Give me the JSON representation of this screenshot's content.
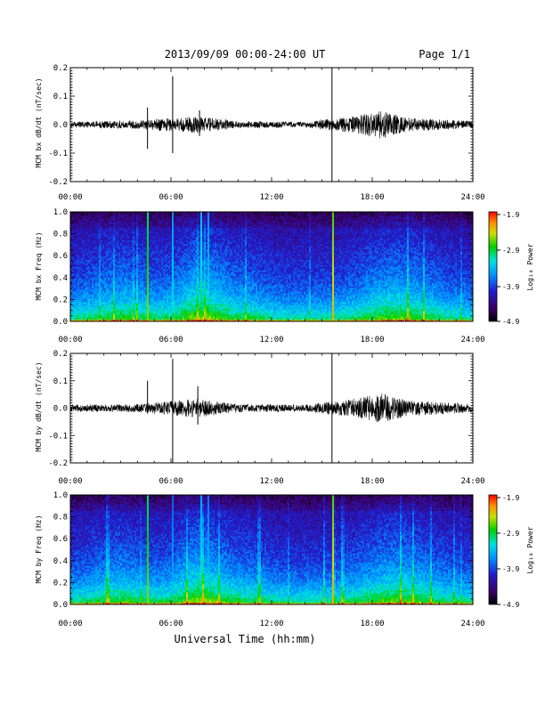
{
  "header": {
    "title": "2013/09/09  00:00-24:00 UT",
    "page": "Page 1/1"
  },
  "x_axis": {
    "ticks": [
      "00:00",
      "06:00",
      "12:00",
      "18:00",
      "24:00"
    ],
    "label": "Universal Time (hh:mm)"
  },
  "colorbar": {
    "ticks": [
      "-1.9",
      "-2.9",
      "-3.9",
      "-4.9"
    ],
    "label": "Log₁₀ Power"
  },
  "colors": {
    "spectrogram_scale": [
      "#000000",
      "#3a0066",
      "#2020d0",
      "#0090ff",
      "#00e0e0",
      "#00d000",
      "#c8e000",
      "#ff9000",
      "#ff0000"
    ]
  },
  "chart_data": [
    {
      "type": "line",
      "ylabel": "MCM bx dB/dt (nT/sec)",
      "xlim": [
        0,
        24
      ],
      "ylim": [
        -0.2,
        0.2
      ],
      "yticks": [
        "-0.2",
        "-0.1",
        "0.0",
        "0.1",
        "0.2"
      ],
      "baseline": 0.0,
      "spikes": [
        {
          "t": 4.6,
          "min": -0.085,
          "max": 0.06
        },
        {
          "t": 6.1,
          "min": -0.1,
          "max": 0.17
        },
        {
          "t": 7.7,
          "min": -0.04,
          "max": 0.05
        },
        {
          "t": 15.6,
          "min": -0.2,
          "max": 0.2
        }
      ],
      "noise_envelope": [
        {
          "t": 0,
          "amp": 0.01
        },
        {
          "t": 4,
          "amp": 0.015
        },
        {
          "t": 7.5,
          "amp": 0.03
        },
        {
          "t": 10,
          "amp": 0.012
        },
        {
          "t": 14,
          "amp": 0.01
        },
        {
          "t": 17,
          "amp": 0.03
        },
        {
          "t": 18.5,
          "amp": 0.05
        },
        {
          "t": 20,
          "amp": 0.025
        },
        {
          "t": 24,
          "amp": 0.012
        }
      ]
    },
    {
      "type": "heatmap",
      "ylabel": "MCM bx Freq (Hz)",
      "xlim": [
        0,
        24
      ],
      "ylim": [
        0.0,
        1.0
      ],
      "yticks": [
        "0.0",
        "0.2",
        "0.4",
        "0.6",
        "0.8",
        "1.0"
      ],
      "zlim": [
        -4.9,
        -1.9
      ],
      "zlabel": "Log10 Power",
      "features": [
        {
          "t": 4.6,
          "level": -2.6
        },
        {
          "t": 6.1,
          "level": -3.2
        },
        {
          "t": 7.7,
          "level": -3.0
        },
        {
          "t": 8.2,
          "level": -3.2
        },
        {
          "t": 15.6,
          "level": -2.3
        }
      ]
    },
    {
      "type": "line",
      "ylabel": "MCM by dB/dt (nT/sec)",
      "xlim": [
        0,
        24
      ],
      "ylim": [
        -0.2,
        0.2
      ],
      "yticks": [
        "-0.2",
        "-0.1",
        "0.0",
        "0.1",
        "0.2"
      ],
      "baseline": 0.0,
      "spikes": [
        {
          "t": 4.6,
          "min": -0.02,
          "max": 0.1
        },
        {
          "t": 6.1,
          "min": -0.2,
          "max": 0.18
        },
        {
          "t": 7.6,
          "min": -0.06,
          "max": 0.08
        },
        {
          "t": 15.6,
          "min": -0.2,
          "max": 0.2
        }
      ],
      "noise_envelope": [
        {
          "t": 0,
          "amp": 0.012
        },
        {
          "t": 4,
          "amp": 0.015
        },
        {
          "t": 7.5,
          "amp": 0.035
        },
        {
          "t": 10,
          "amp": 0.015
        },
        {
          "t": 14,
          "amp": 0.012
        },
        {
          "t": 17,
          "amp": 0.035
        },
        {
          "t": 18.5,
          "amp": 0.055
        },
        {
          "t": 20,
          "amp": 0.03
        },
        {
          "t": 24,
          "amp": 0.015
        }
      ]
    },
    {
      "type": "heatmap",
      "ylabel": "MCM by Freq (Hz)",
      "xlim": [
        0,
        24
      ],
      "ylim": [
        0.0,
        1.0
      ],
      "yticks": [
        "0.0",
        "0.2",
        "0.4",
        "0.6",
        "0.8",
        "1.0"
      ],
      "zlim": [
        -4.9,
        -1.9
      ],
      "zlabel": "Log10 Power",
      "features": [
        {
          "t": 4.6,
          "level": -2.6
        },
        {
          "t": 6.1,
          "level": -3.4
        },
        {
          "t": 7.7,
          "level": -3.1
        },
        {
          "t": 8.2,
          "level": -3.3
        },
        {
          "t": 15.6,
          "level": -2.3
        }
      ]
    }
  ]
}
